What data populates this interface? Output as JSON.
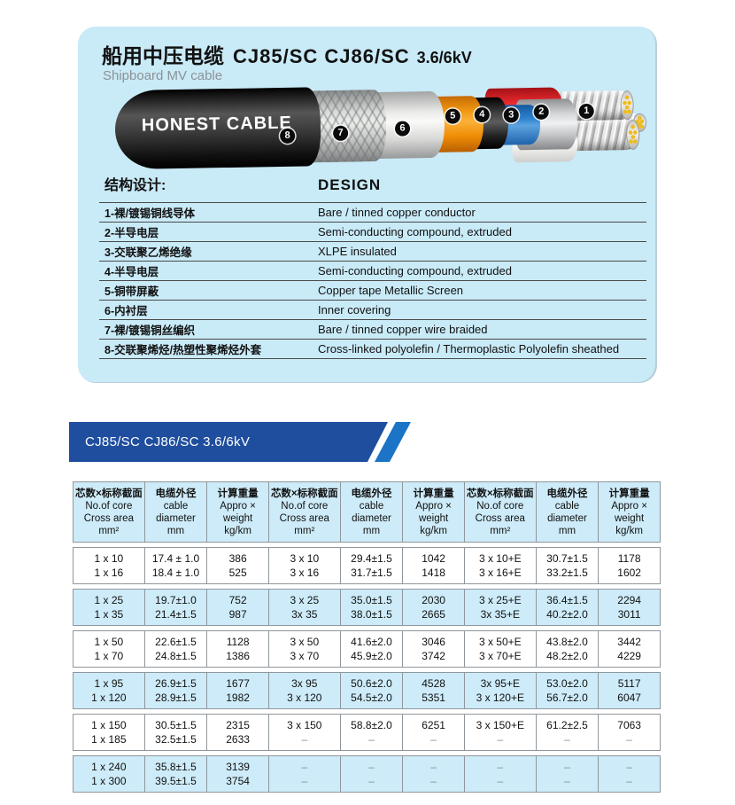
{
  "page": {
    "title_cn": "船用中压电缆",
    "title_models": "CJ85/SC  CJ86/SC",
    "title_voltage": "3.6/6kV",
    "subtitle": "Shipboard MV cable"
  },
  "cable": {
    "brand": "HONEST CABLE",
    "layers": [
      "1",
      "2",
      "3",
      "4",
      "5",
      "6",
      "7",
      "8"
    ]
  },
  "design": {
    "header_cn": "结构设计:",
    "header_en": "DESIGN",
    "rows": [
      {
        "cn": "1-裸/镀锡铜线导体",
        "en": "Bare / tinned copper conductor"
      },
      {
        "cn": "2-半导电层",
        "en": "Semi-conducting compound, extruded"
      },
      {
        "cn": "3-交联聚乙烯绝缘",
        "en": "XLPE insulated"
      },
      {
        "cn": "4-半导电层",
        "en": "Semi-conducting compound, extruded"
      },
      {
        "cn": "5-铜带屏蔽",
        "en": "Copper tape Metallic Screen"
      },
      {
        "cn": "6-内衬层",
        "en": "Inner covering"
      },
      {
        "cn": "7-裸/镀锡铜丝编织",
        "en": "Bare / tinned copper wire braided"
      },
      {
        "cn": "8-交联聚烯烃/热塑性聚烯烃外套",
        "en": "Cross-linked polyolefin / Thermoplastic Polyolefin sheathed"
      }
    ]
  },
  "spec": {
    "banner": "CJ85/SC CJ86/SC 3.6/6kV",
    "column_group": [
      {
        "cn": "芯数×标称截面",
        "l1": "No.of core",
        "l2": "Cross area",
        "l3": "mm²"
      },
      {
        "cn": "电缆外径",
        "l1": "cable",
        "l2": "diameter",
        "l3": "mm"
      },
      {
        "cn": "计算重量",
        "l1": "Appro ×",
        "l2": "weight",
        "l3": "kg/km"
      }
    ],
    "bands": [
      {
        "shade": "white",
        "rows": [
          [
            "1 x 10",
            "17.4 ± 1.0",
            "386",
            "3 x 10",
            "29.4±1.5",
            "1042",
            "3 x 10+E",
            "30.7±1.5",
            "1178"
          ],
          [
            "1 x 16",
            "18.4 ± 1.0",
            "525",
            "3 x 16",
            "31.7±1.5",
            "1418",
            "3 x 16+E",
            "33.2±1.5",
            "1602"
          ]
        ]
      },
      {
        "shade": "blue",
        "rows": [
          [
            "1 x 25",
            "19.7±1.0",
            "752",
            "3 x 25",
            "35.0±1.5",
            "2030",
            "3 x 25+E",
            "36.4±1.5",
            "2294"
          ],
          [
            "1 x 35",
            "21.4±1.5",
            "987",
            "3x 35",
            "38.0±1.5",
            "2665",
            "3x 35+E",
            "40.2±2.0",
            "3011"
          ]
        ]
      },
      {
        "shade": "white",
        "rows": [
          [
            "1 x 50",
            "22.6±1.5",
            "1128",
            "3 x 50",
            "41.6±2.0",
            "3046",
            "3 x 50+E",
            "43.8±2.0",
            "3442"
          ],
          [
            "1 x 70",
            "24.8±1.5",
            "1386",
            "3 x 70",
            "45.9±2.0",
            "3742",
            "3 x 70+E",
            "48.2±2.0",
            "4229"
          ]
        ]
      },
      {
        "shade": "blue",
        "rows": [
          [
            "1 x 95",
            "26.9±1.5",
            "1677",
            "3x 95",
            "50.6±2.0",
            "4528",
            "3x 95+E",
            "53.0±2.0",
            "5117"
          ],
          [
            "1 x 120",
            "28.9±1.5",
            "1982",
            "3 x 120",
            "54.5±2.0",
            "5351",
            "3 x 120+E",
            "56.7±2.0",
            "6047"
          ]
        ]
      },
      {
        "shade": "white",
        "rows": [
          [
            "1 x 150",
            "30.5±1.5",
            "2315",
            "3 x 150",
            "58.8±2.0",
            "6251",
            "3 x 150+E",
            "61.2±2.5",
            "7063"
          ],
          [
            "1 x 185",
            "32.5±1.5",
            "2633",
            "–",
            "–",
            "–",
            "–",
            "–",
            "–"
          ]
        ]
      },
      {
        "shade": "blue",
        "rows": [
          [
            "1 x 240",
            "35.8±1.5",
            "3139",
            "–",
            "–",
            "–",
            "–",
            "–",
            "–"
          ],
          [
            "1 x 300",
            "39.5±1.5",
            "3754",
            "–",
            "–",
            "–",
            "–",
            "–",
            "–"
          ]
        ]
      }
    ]
  },
  "colors": {
    "panel_bg": "#c9eaf7",
    "band_blue": "#cdebf8",
    "banner_dark": "#1f4e9e",
    "banner_light": "#1b74c5",
    "table_border": "#8f979c"
  }
}
